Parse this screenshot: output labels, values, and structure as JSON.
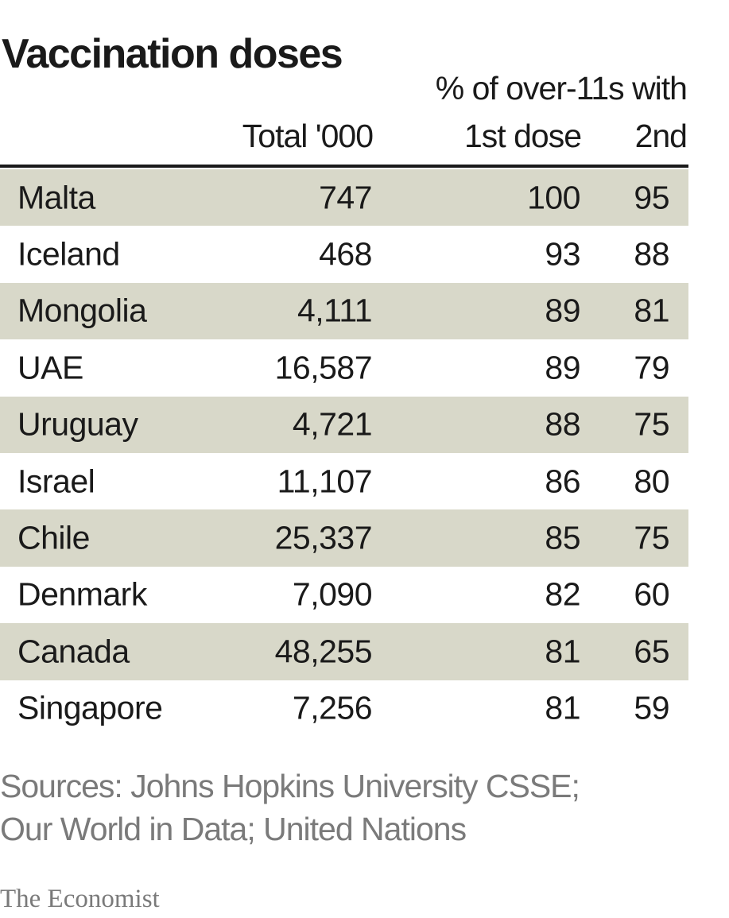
{
  "chart_data": {
    "type": "table",
    "title": "Vaccination doses",
    "group_header": "% of over-11s with",
    "columns": [
      "Total '000",
      "1st dose",
      "2nd"
    ],
    "rows": [
      {
        "country": "Malta",
        "total": "747",
        "first": "100",
        "second": "95"
      },
      {
        "country": "Iceland",
        "total": "468",
        "first": "93",
        "second": "88"
      },
      {
        "country": "Mongolia",
        "total": "4,111",
        "first": "89",
        "second": "81"
      },
      {
        "country": "UAE",
        "total": "16,587",
        "first": "89",
        "second": "79"
      },
      {
        "country": "Uruguay",
        "total": "4,721",
        "first": "88",
        "second": "75"
      },
      {
        "country": "Israel",
        "total": "11,107",
        "first": "86",
        "second": "80"
      },
      {
        "country": "Chile",
        "total": "25,337",
        "first": "85",
        "second": "75"
      },
      {
        "country": "Denmark",
        "total": "7,090",
        "first": "82",
        "second": "60"
      },
      {
        "country": "Canada",
        "total": "48,255",
        "first": "81",
        "second": "65"
      },
      {
        "country": "Singapore",
        "total": "7,256",
        "first": "81",
        "second": "59"
      }
    ]
  },
  "footer": {
    "source_line1": "Sources: Johns Hopkins University CSSE;",
    "source_line2": "Our World in Data; United Nations",
    "brand": "The Economist"
  },
  "colors": {
    "row_shade": "#d8d8c9",
    "text": "#1a1a1a",
    "muted": "#7a7a7a"
  }
}
